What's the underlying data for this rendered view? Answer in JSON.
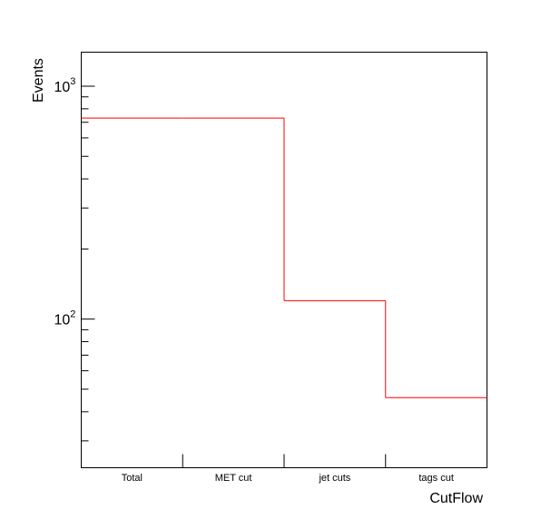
{
  "chart_data": {
    "type": "bar",
    "style": "step-histogram",
    "title": "",
    "xlabel": "CutFlow",
    "ylabel": "Events",
    "categories": [
      "Total",
      "MET cut",
      "jet cuts",
      "tags cut"
    ],
    "values": [
      730,
      730,
      120,
      46
    ],
    "y_scale": "log",
    "ylim": [
      23,
      1400
    ],
    "y_major_ticks": [
      {
        "value": 100,
        "base": "10",
        "exp": "2"
      },
      {
        "value": 1000,
        "base": "10",
        "exp": "3"
      }
    ],
    "line_color": "#ff0000",
    "axis_color": "#000000",
    "grid": false,
    "legend": "none"
  }
}
